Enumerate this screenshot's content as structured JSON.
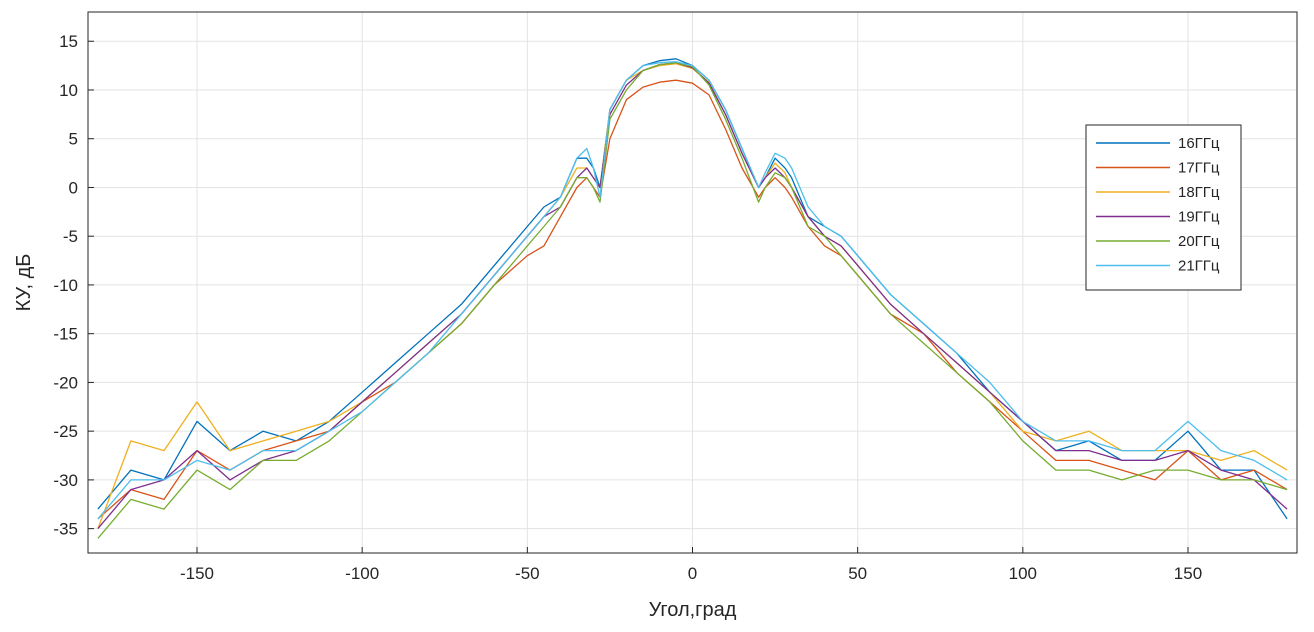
{
  "chart_data": {
    "type": "line",
    "xlabel": "Угол,град",
    "ylabel": "КУ, дБ",
    "xlim": [
      -183,
      183
    ],
    "ylim": [
      -37.5,
      18
    ],
    "xticks": [
      -150,
      -100,
      -50,
      0,
      50,
      100,
      150
    ],
    "yticks": [
      -35,
      -30,
      -25,
      -20,
      -15,
      -10,
      -5,
      0,
      5,
      10,
      15
    ],
    "grid": true,
    "legend_position": "right",
    "x": [
      -180,
      -170,
      -160,
      -150,
      -140,
      -130,
      -120,
      -110,
      -100,
      -90,
      -80,
      -70,
      -60,
      -50,
      -45,
      -40,
      -35,
      -32,
      -30,
      -28,
      -25,
      -20,
      -15,
      -10,
      -5,
      0,
      5,
      10,
      15,
      20,
      22,
      25,
      28,
      30,
      35,
      40,
      45,
      50,
      60,
      70,
      80,
      90,
      100,
      110,
      120,
      130,
      140,
      150,
      160,
      170,
      180
    ],
    "series": [
      {
        "name": "16ГГц",
        "color": "#0072BD",
        "values": [
          -33,
          -29,
          -30,
          -24,
          -27,
          -25,
          -26,
          -24,
          -21,
          -18,
          -15,
          -12,
          -8,
          -4,
          -2,
          -1,
          3,
          3,
          2,
          0,
          8,
          11,
          12.5,
          13,
          13.2,
          12.5,
          11,
          8,
          4,
          0,
          1,
          3,
          2,
          1,
          -3,
          -4,
          -5,
          -7,
          -11,
          -14,
          -17,
          -21,
          -24,
          -27,
          -26,
          -28,
          -28,
          -25,
          -29,
          -29,
          -34
        ]
      },
      {
        "name": "17ГГц",
        "color": "#D95319",
        "values": [
          -34,
          -31,
          -32,
          -27,
          -29,
          -27,
          -26,
          -25,
          -22,
          -20,
          -17,
          -14,
          -10,
          -7,
          -6,
          -3,
          0,
          1,
          0,
          -1,
          5,
          9,
          10.3,
          10.8,
          11,
          10.7,
          9.5,
          6,
          2,
          -1,
          0,
          1,
          0,
          -1,
          -4,
          -6,
          -7,
          -9,
          -13,
          -15,
          -19,
          -22,
          -25,
          -28,
          -28,
          -29,
          -30,
          -27,
          -30,
          -29,
          -31
        ]
      },
      {
        "name": "18ГГц",
        "color": "#EDB120",
        "values": [
          -35,
          -26,
          -27,
          -22,
          -27,
          -26,
          -25,
          -24,
          -22,
          -19,
          -16,
          -13,
          -9,
          -5,
          -3,
          -1,
          2,
          2,
          1,
          0,
          8,
          11,
          12,
          12.5,
          12.7,
          12.2,
          10.8,
          7.5,
          3.5,
          0,
          1,
          2.5,
          1.5,
          0,
          -3,
          -5,
          -6,
          -8,
          -12,
          -15,
          -18,
          -21,
          -25,
          -26,
          -25,
          -27,
          -27,
          -27,
          -28,
          -27,
          -29
        ]
      },
      {
        "name": "19ГГц",
        "color": "#7E2F8E",
        "values": [
          -35,
          -31,
          -30,
          -27,
          -30,
          -28,
          -27,
          -25,
          -22,
          -19,
          -16,
          -13,
          -9,
          -5,
          -3,
          -2,
          1,
          2,
          1,
          0,
          7.5,
          10.5,
          12,
          12.6,
          12.8,
          12.3,
          10.7,
          7.5,
          3.5,
          0,
          1,
          2,
          1,
          0,
          -3,
          -5,
          -6,
          -8,
          -12,
          -15,
          -18,
          -21,
          -24,
          -27,
          -27,
          -28,
          -28,
          -27,
          -29,
          -30,
          -33
        ]
      },
      {
        "name": "20ГГц",
        "color": "#77AC30",
        "values": [
          -36,
          -32,
          -33,
          -29,
          -31,
          -28,
          -28,
          -26,
          -23,
          -20,
          -17,
          -14,
          -10,
          -6,
          -4,
          -2,
          1,
          1,
          0,
          -1.5,
          7,
          10,
          12,
          12.6,
          12.8,
          12.4,
          10.5,
          7,
          3,
          -1.5,
          0,
          1.5,
          1,
          0,
          -4,
          -5,
          -7,
          -9,
          -13,
          -16,
          -19,
          -22,
          -26,
          -29,
          -29,
          -30,
          -29,
          -29,
          -30,
          -30,
          -31
        ]
      },
      {
        "name": "21ГГц",
        "color": "#4DBEEE",
        "values": [
          -34,
          -30,
          -30,
          -28,
          -29,
          -27,
          -27,
          -25,
          -23,
          -20,
          -17,
          -13,
          -9,
          -5,
          -3,
          -1,
          3,
          4,
          2,
          -1,
          8,
          11,
          12.5,
          12.8,
          12.9,
          12.5,
          11,
          8,
          4,
          0,
          1.5,
          3.5,
          3,
          2,
          -2,
          -4,
          -5,
          -7,
          -11,
          -14,
          -17,
          -20,
          -24,
          -26,
          -26,
          -27,
          -27,
          -24,
          -27,
          -28,
          -30
        ]
      }
    ]
  }
}
